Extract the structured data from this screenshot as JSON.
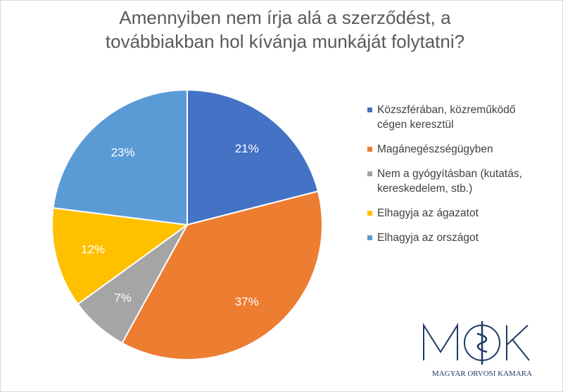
{
  "chart_data": {
    "type": "pie",
    "title_lines": [
      "Amennyiben nem írja alá a szerződést, a",
      "továbbiakban hol kívánja munkáját folytatni?"
    ],
    "legend_placement": "right",
    "slices": [
      {
        "label_lines": [
          "Közszférában, közreműködő",
          "cégen keresztül"
        ],
        "value": 21,
        "data_label": "21%",
        "color": "#4472c4"
      },
      {
        "label_lines": [
          "Magánegészségügyben"
        ],
        "value": 37,
        "data_label": "37%",
        "color": "#ed7d31"
      },
      {
        "label_lines": [
          "Nem a gyógyításban (kutatás,",
          "kereskedelem, stb.)"
        ],
        "value": 7,
        "data_label": "7%",
        "color": "#a5a5a5"
      },
      {
        "label_lines": [
          "Elhagyja az ágazatot"
        ],
        "value": 12,
        "data_label": "12%",
        "color": "#ffc000"
      },
      {
        "label_lines": [
          "Elhagyja az országot"
        ],
        "value": 23,
        "data_label": "23%",
        "color": "#5b9bd5"
      }
    ]
  },
  "logo": {
    "letters": "MOK",
    "caption": "MAGYAR ORVOSI KAMARA",
    "color": "#1f3864"
  }
}
